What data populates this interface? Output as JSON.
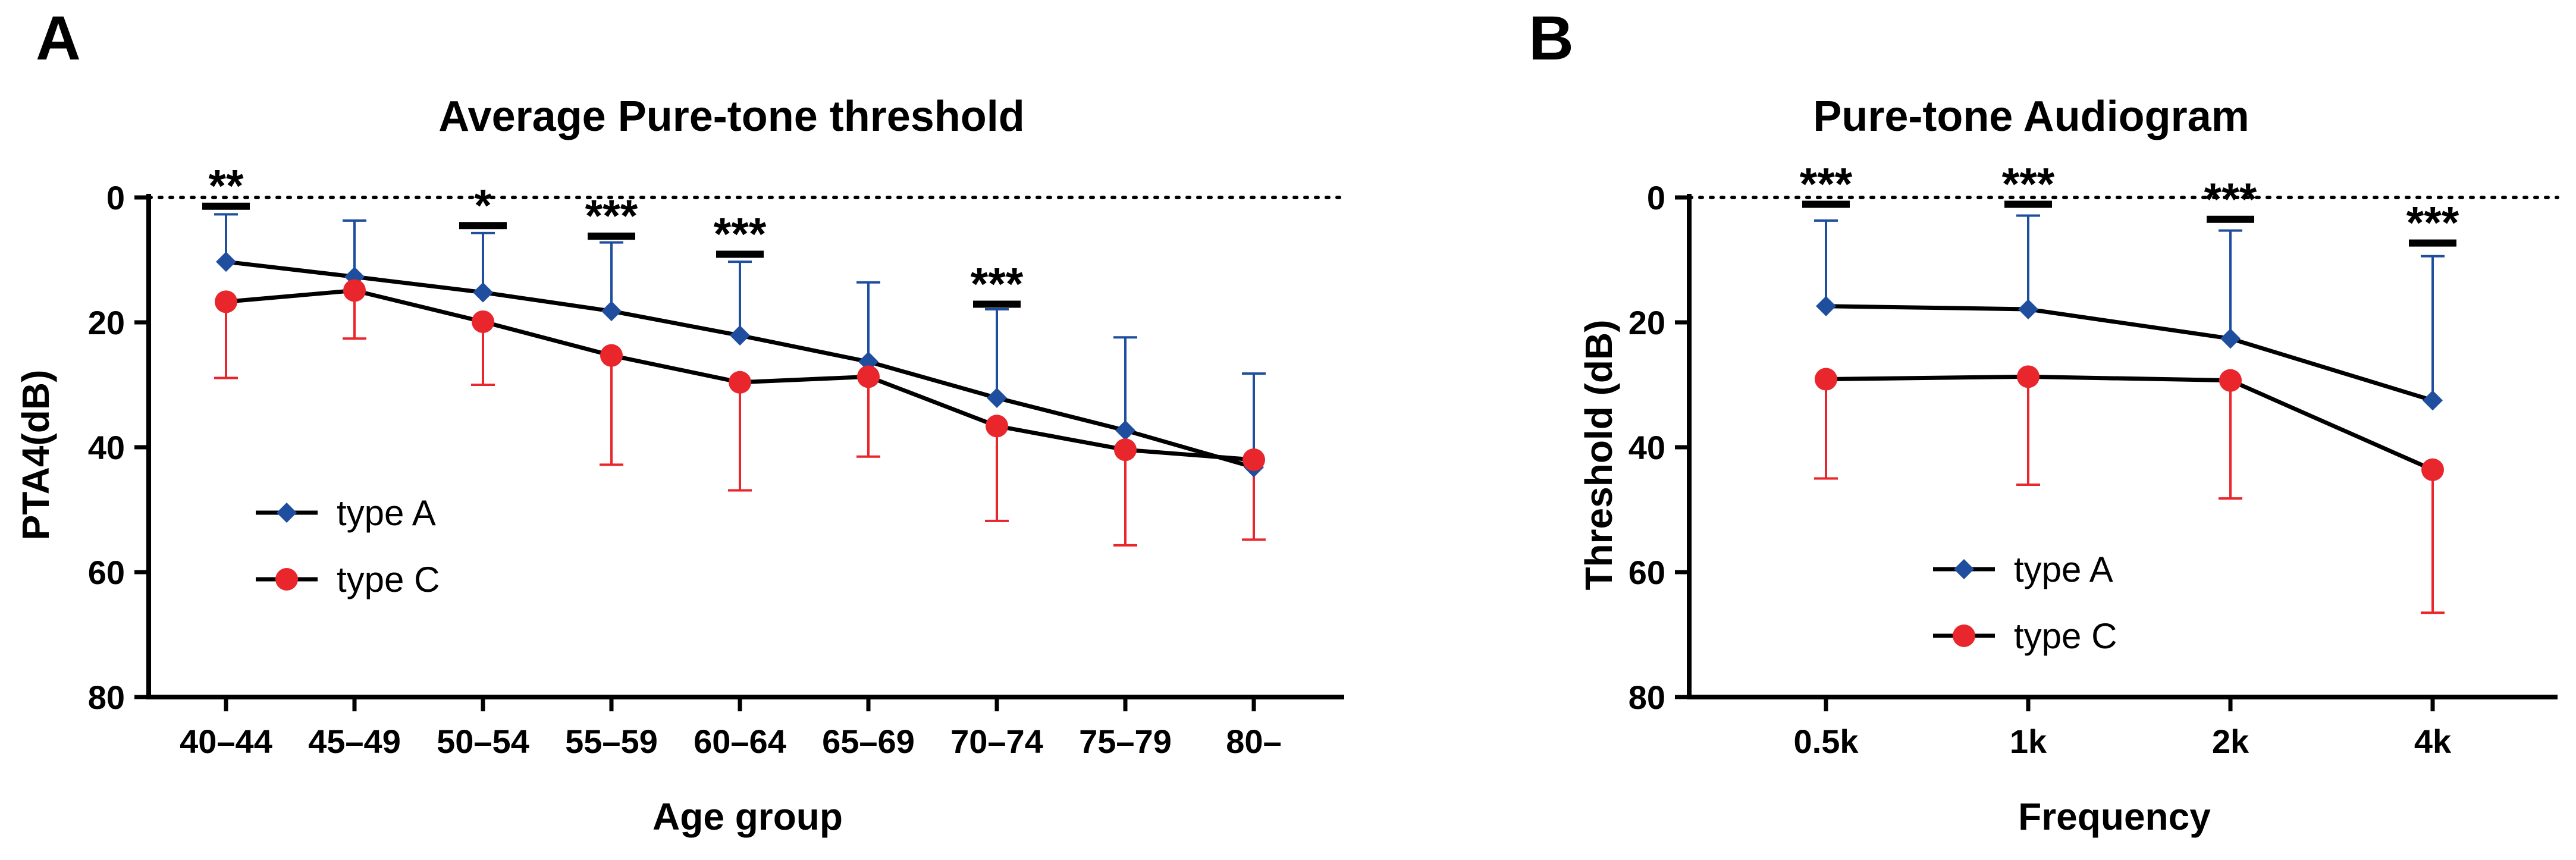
{
  "colors": {
    "typeA": "#1f4e9e",
    "typeC": "#e8262c",
    "line": "#000000"
  },
  "chart_data": [
    {
      "type": "line",
      "panel_label": "A",
      "title": "Average Pure-tone threshold",
      "xlabel": "Age group",
      "ylabel": "PTA4(dB)",
      "ylim": [
        0,
        80
      ],
      "y_inverted": true,
      "yticks": [
        "0",
        "20",
        "40",
        "60",
        "80"
      ],
      "reference_line": {
        "y": 0,
        "style": "dotted"
      },
      "categories": [
        "40–44",
        "45–49",
        "50–54",
        "55–59",
        "60–64",
        "65–69",
        "70–74",
        "75–79",
        "80–"
      ],
      "series": [
        {
          "name": "type A",
          "marker": "diamond",
          "values": [
            10.3,
            12.7,
            15.2,
            18.2,
            22.1,
            26.3,
            32.1,
            37.3,
            43.2
          ],
          "sd": [
            7.6,
            9.0,
            9.5,
            11.0,
            11.8,
            12.7,
            14.2,
            14.9,
            15.0
          ]
        },
        {
          "name": "type C",
          "marker": "circle",
          "values": [
            16.7,
            14.9,
            19.9,
            25.3,
            29.6,
            28.7,
            36.6,
            40.4,
            42.0
          ],
          "sd": [
            12.2,
            7.7,
            10.1,
            17.5,
            17.3,
            12.8,
            15.2,
            15.3,
            12.8
          ]
        }
      ],
      "significance": [
        {
          "category": "40–44",
          "label": "**",
          "y": 1.4
        },
        {
          "category": "50–54",
          "label": "*",
          "y": 4.5
        },
        {
          "category": "55–59",
          "label": "***",
          "y": 6.2
        },
        {
          "category": "60–64",
          "label": "***",
          "y": 9.1
        },
        {
          "category": "70–74",
          "label": "***",
          "y": 17.1
        }
      ],
      "legend": {
        "position": "bottom-left",
        "entries": [
          "type A",
          "type C"
        ]
      }
    },
    {
      "type": "line",
      "panel_label": "B",
      "title": "Pure-tone Audiogram",
      "xlabel": "Frequency",
      "ylabel": "Threshold (dB)",
      "ylim": [
        0,
        80
      ],
      "y_inverted": true,
      "yticks": [
        "0",
        "20",
        "40",
        "60",
        "80"
      ],
      "reference_line": {
        "y": 0,
        "style": "dotted"
      },
      "categories": [
        "0.5k",
        "1k",
        "2k",
        "4k"
      ],
      "series": [
        {
          "name": "type A",
          "marker": "diamond",
          "values": [
            17.4,
            17.9,
            22.6,
            32.5
          ],
          "sd": [
            13.7,
            15.0,
            17.3,
            23.1
          ]
        },
        {
          "name": "type C",
          "marker": "circle",
          "values": [
            29.1,
            28.7,
            29.3,
            43.6
          ],
          "sd": [
            15.9,
            17.3,
            18.9,
            22.9
          ]
        }
      ],
      "significance": [
        {
          "category": "0.5k",
          "label": "***",
          "y": 1.1
        },
        {
          "category": "1k",
          "label": "***",
          "y": 1.1
        },
        {
          "category": "2k",
          "label": "***",
          "y": 3.5
        },
        {
          "category": "4k",
          "label": "***",
          "y": 7.3
        }
      ],
      "legend": {
        "position": "bottom-left",
        "entries": [
          "type A",
          "type C"
        ]
      }
    }
  ]
}
